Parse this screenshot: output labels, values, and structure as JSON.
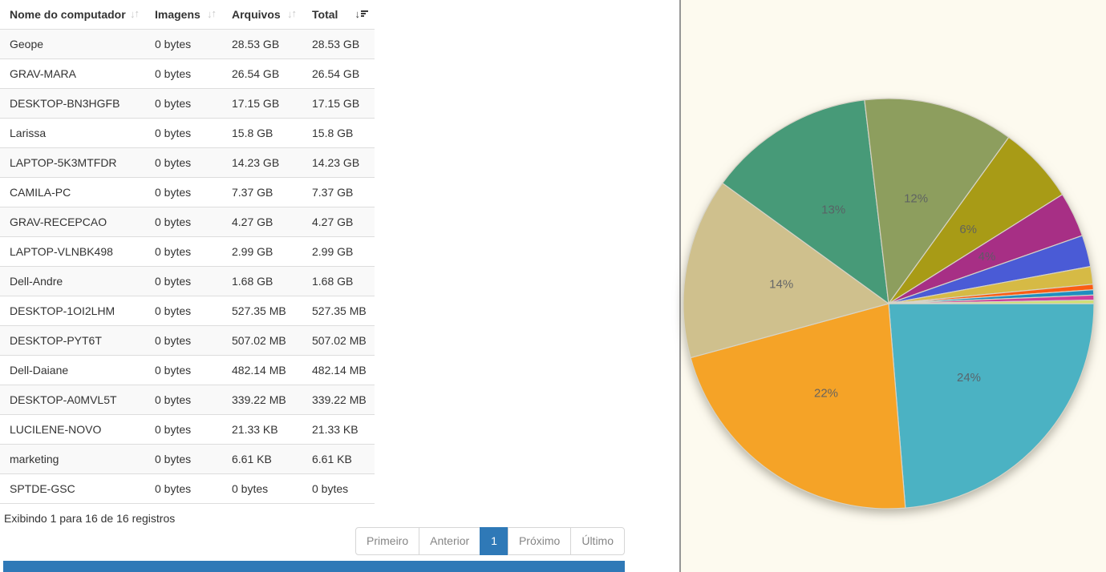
{
  "icons": {
    "arrow_down": "↓",
    "arrow_up": "↑",
    "sort_desc": "↓"
  },
  "table": {
    "columns": [
      {
        "label": "Nome do computador",
        "sort": "none"
      },
      {
        "label": "Imagens",
        "sort": "none"
      },
      {
        "label": "Arquivos",
        "sort": "none"
      },
      {
        "label": "Total",
        "sort": "desc"
      }
    ],
    "rows": [
      [
        "Geope",
        "0 bytes",
        "28.53 GB",
        "28.53 GB"
      ],
      [
        "GRAV-MARA",
        "0 bytes",
        "26.54 GB",
        "26.54 GB"
      ],
      [
        "DESKTOP-BN3HGFB",
        "0 bytes",
        "17.15 GB",
        "17.15 GB"
      ],
      [
        "Larissa",
        "0 bytes",
        "15.8 GB",
        "15.8 GB"
      ],
      [
        "LAPTOP-5K3MTFDR",
        "0 bytes",
        "14.23 GB",
        "14.23 GB"
      ],
      [
        "CAMILA-PC",
        "0 bytes",
        "7.37 GB",
        "7.37 GB"
      ],
      [
        "GRAV-RECEPCAO",
        "0 bytes",
        "4.27 GB",
        "4.27 GB"
      ],
      [
        "LAPTOP-VLNBK498",
        "0 bytes",
        "2.99 GB",
        "2.99 GB"
      ],
      [
        "Dell-Andre",
        "0 bytes",
        "1.68 GB",
        "1.68 GB"
      ],
      [
        "DESKTOP-1OI2LHM",
        "0 bytes",
        "527.35 MB",
        "527.35 MB"
      ],
      [
        "DESKTOP-PYT6T",
        "0 bytes",
        "507.02 MB",
        "507.02 MB"
      ],
      [
        "Dell-Daiane",
        "0 bytes",
        "482.14 MB",
        "482.14 MB"
      ],
      [
        "DESKTOP-A0MVL5T",
        "0 bytes",
        "339.22 MB",
        "339.22 MB"
      ],
      [
        "LUCILENE-NOVO",
        "0 bytes",
        "21.33 KB",
        "21.33 KB"
      ],
      [
        "marketing",
        "0 bytes",
        "6.61 KB",
        "6.61 KB"
      ],
      [
        "SPTDE-GSC",
        "0 bytes",
        "0 bytes",
        "0 bytes"
      ]
    ],
    "info_text": "Exibindo 1 para 16 de 16 registros"
  },
  "pagination": {
    "items": [
      {
        "label": "Primeiro",
        "active": false
      },
      {
        "label": "Anterior",
        "active": false
      },
      {
        "label": "1",
        "active": true
      },
      {
        "label": "Próximo",
        "active": false
      },
      {
        "label": "Último",
        "active": false
      }
    ]
  },
  "colors": {
    "accent_blue": "#2f79b7",
    "chart_background": "#fdfaef",
    "divider_gray": "#969696",
    "row_stripe": "#f9f9f9",
    "table_border": "#dddddd"
  },
  "chart_data": {
    "type": "pie",
    "unit": "GB",
    "start_angle_deg": 0,
    "direction": "clockwise",
    "legend_position": "none",
    "background": "#fdfaef",
    "label_color": "#5a5d63",
    "slices": [
      {
        "name": "Geope",
        "value_gb": 28.53,
        "pct_label": "24%",
        "color": "#4bb2c3"
      },
      {
        "name": "GRAV-MARA",
        "value_gb": 26.54,
        "pct_label": "22%",
        "color": "#f5a327"
      },
      {
        "name": "DESKTOP-BN3HGFB",
        "value_gb": 17.15,
        "pct_label": "14%",
        "color": "#cfc08d"
      },
      {
        "name": "Larissa",
        "value_gb": 15.8,
        "pct_label": "13%",
        "color": "#479a78"
      },
      {
        "name": "LAPTOP-5K3MTFDR",
        "value_gb": 14.23,
        "pct_label": "12%",
        "color": "#8d9e5e"
      },
      {
        "name": "CAMILA-PC",
        "value_gb": 7.37,
        "pct_label": "6%",
        "color": "#a89b16"
      },
      {
        "name": "GRAV-RECEPCAO",
        "value_gb": 4.27,
        "pct_label": "4%",
        "color": "#a72f85"
      },
      {
        "name": "LAPTOP-VLNBK498",
        "value_gb": 2.99,
        "pct_label": "",
        "color": "#4a5bd6"
      },
      {
        "name": "Dell-Andre",
        "value_gb": 1.68,
        "pct_label": "",
        "color": "#d6ba45"
      },
      {
        "name": "DESKTOP-1OI2LHM",
        "value_gb": 0.515,
        "pct_label": "",
        "color": "#fb5c13"
      },
      {
        "name": "DESKTOP-PYT6T",
        "value_gb": 0.495,
        "pct_label": "",
        "color": "#1f8ec0"
      },
      {
        "name": "Dell-Daiane",
        "value_gb": 0.471,
        "pct_label": "",
        "color": "#ce3d9c"
      },
      {
        "name": "DESKTOP-A0MVL5T",
        "value_gb": 0.331,
        "pct_label": "",
        "color": "#cfdf70"
      },
      {
        "name": "LUCILENE-NOVO",
        "value_gb": 2.04e-05,
        "pct_label": "",
        "color": "#e8e8e8"
      },
      {
        "name": "marketing",
        "value_gb": 6.3e-06,
        "pct_label": "",
        "color": "#f0f0f0"
      },
      {
        "name": "SPTDE-GSC",
        "value_gb": 0,
        "pct_label": "",
        "color": "#cccccc"
      }
    ]
  }
}
